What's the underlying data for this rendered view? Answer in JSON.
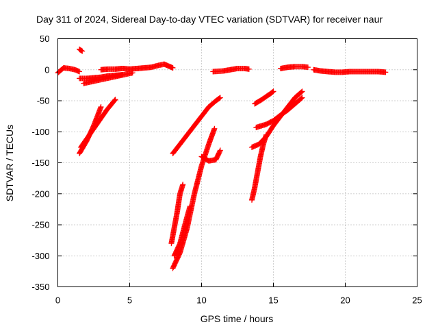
{
  "chart_data": {
    "type": "scatter",
    "title": "Day 311 of 2024, Sidereal Day-to-day VTEC variation (SDTVAR) for receiver naur",
    "xlabel": "GPS time / hours",
    "ylabel": "SDTVAR / TECUs",
    "xlim": [
      0,
      25
    ],
    "ylim": [
      -350,
      50
    ],
    "xticks": [
      0,
      5,
      10,
      15,
      20,
      25
    ],
    "yticks": [
      50,
      0,
      -50,
      -100,
      -150,
      -200,
      -250,
      -300,
      -350
    ],
    "grid": true,
    "marker": "plus",
    "color": "#ff0000",
    "tracks": [
      [
        [
          0.0,
          -5
        ],
        [
          0.4,
          3
        ],
        [
          0.8,
          2
        ],
        [
          1.2,
          0
        ],
        [
          1.5,
          -3
        ]
      ],
      [
        [
          1.5,
          33
        ],
        [
          1.7,
          30
        ]
      ],
      [
        [
          1.5,
          -14
        ],
        [
          2.0,
          -14
        ],
        [
          2.5,
          -13
        ],
        [
          3.0,
          -12
        ],
        [
          3.5,
          -10
        ],
        [
          4.0,
          -9
        ],
        [
          4.5,
          -8
        ]
      ],
      [
        [
          1.8,
          -22
        ],
        [
          2.4,
          -19
        ],
        [
          3.0,
          -16
        ],
        [
          3.6,
          -13
        ],
        [
          4.2,
          -10
        ],
        [
          4.8,
          -7
        ],
        [
          5.2,
          -5
        ]
      ],
      [
        [
          3.0,
          0
        ],
        [
          3.5,
          1
        ],
        [
          4.0,
          1
        ],
        [
          4.5,
          2
        ],
        [
          5.0,
          1
        ],
        [
          5.5,
          2
        ],
        [
          6.0,
          3
        ],
        [
          6.5,
          4
        ],
        [
          7.0,
          7
        ],
        [
          7.4,
          9
        ],
        [
          7.8,
          5
        ],
        [
          8.0,
          3
        ]
      ],
      [
        [
          1.5,
          -135
        ],
        [
          2.0,
          -115
        ],
        [
          2.5,
          -90
        ],
        [
          3.0,
          -60
        ]
      ],
      [
        [
          1.6,
          -125
        ],
        [
          2.2,
          -105
        ],
        [
          2.8,
          -85
        ],
        [
          3.4,
          -65
        ],
        [
          4.0,
          -48
        ]
      ],
      [
        [
          8.0,
          -135
        ],
        [
          8.5,
          -120
        ],
        [
          9.0,
          -105
        ],
        [
          9.5,
          -90
        ],
        [
          10.0,
          -75
        ],
        [
          10.5,
          -60
        ],
        [
          11.0,
          -50
        ],
        [
          11.3,
          -45
        ]
      ],
      [
        [
          10.0,
          -140
        ],
        [
          10.5,
          -147
        ],
        [
          11.0,
          -145
        ],
        [
          11.3,
          -130
        ]
      ],
      [
        [
          7.9,
          -280
        ],
        [
          8.1,
          -255
        ],
        [
          8.3,
          -230
        ],
        [
          8.5,
          -200
        ],
        [
          8.7,
          -185
        ]
      ],
      [
        [
          8.0,
          -320
        ],
        [
          8.5,
          -295
        ],
        [
          9.0,
          -255
        ],
        [
          9.5,
          -200
        ],
        [
          10.0,
          -155
        ],
        [
          10.5,
          -120
        ],
        [
          10.9,
          -95
        ]
      ],
      [
        [
          8.1,
          -300
        ],
        [
          8.5,
          -280
        ],
        [
          8.9,
          -245
        ],
        [
          9.2,
          -220
        ]
      ],
      [
        [
          10.8,
          -3
        ],
        [
          11.5,
          -2
        ],
        [
          12.0,
          0
        ],
        [
          12.5,
          2
        ],
        [
          13.0,
          2
        ],
        [
          13.3,
          1
        ]
      ],
      [
        [
          13.5,
          -210
        ],
        [
          13.7,
          -190
        ],
        [
          13.9,
          -165
        ],
        [
          14.1,
          -140
        ],
        [
          14.3,
          -120
        ],
        [
          14.5,
          -105
        ]
      ],
      [
        [
          13.5,
          -125
        ],
        [
          14.0,
          -120
        ],
        [
          14.5,
          -108
        ],
        [
          15.0,
          -90
        ],
        [
          15.5,
          -75
        ],
        [
          16.0,
          -60
        ],
        [
          16.5,
          -45
        ],
        [
          17.0,
          -35
        ]
      ],
      [
        [
          13.8,
          -93
        ],
        [
          14.5,
          -88
        ],
        [
          15.0,
          -82
        ],
        [
          15.5,
          -73
        ],
        [
          16.0,
          -65
        ],
        [
          16.5,
          -55
        ],
        [
          17.0,
          -45
        ]
      ],
      [
        [
          13.7,
          -55
        ],
        [
          14.2,
          -48
        ],
        [
          14.7,
          -40
        ],
        [
          15.0,
          -35
        ]
      ],
      [
        [
          15.5,
          2
        ],
        [
          16.0,
          4
        ],
        [
          16.5,
          5
        ],
        [
          17.0,
          5
        ],
        [
          17.4,
          4
        ]
      ],
      [
        [
          17.8,
          0
        ],
        [
          18.3,
          -2
        ],
        [
          18.8,
          -3
        ],
        [
          19.3,
          -4
        ],
        [
          19.8,
          -4
        ],
        [
          20.3,
          -3
        ],
        [
          20.8,
          -3
        ],
        [
          21.3,
          -3
        ],
        [
          21.8,
          -3
        ],
        [
          22.3,
          -3
        ],
        [
          22.8,
          -4
        ]
      ]
    ]
  }
}
